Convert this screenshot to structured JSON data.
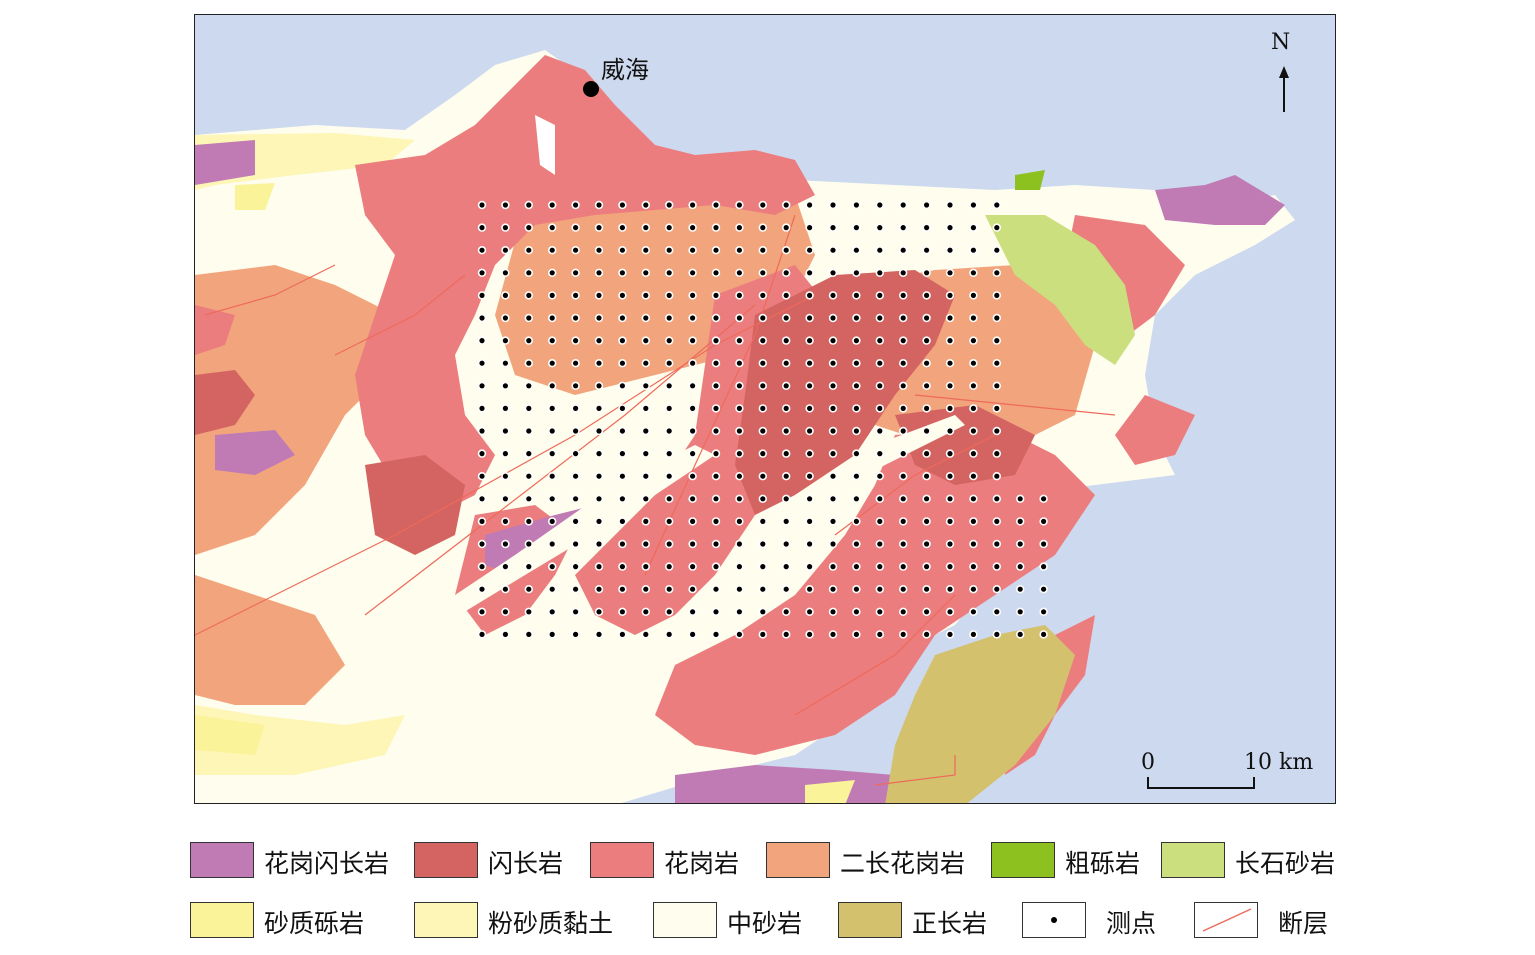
{
  "map": {
    "city": "威海",
    "north": "N",
    "scale_start": "0",
    "scale_end": "10 km"
  },
  "colors": {
    "sea": "#cdd9ee",
    "granodiorite": "#c07bb5",
    "diorite": "#d36462",
    "granite": "#ec7d7e",
    "monzogranite": "#f2a57c",
    "conglomerate": "#8dc11f",
    "arkose": "#cbdf7e",
    "sandy_conglomerate": "#fbf39a",
    "silty_clay": "#fdf6b6",
    "medium_sandstone": "#fefdee",
    "syenite": "#d3c16e",
    "fault": "#ee6a5a"
  },
  "legend": [
    {
      "label": "花岗闪长岩",
      "color": "#c07bb5"
    },
    {
      "label": "闪长岩",
      "color": "#d36462"
    },
    {
      "label": "花岗岩",
      "color": "#ec7d7e"
    },
    {
      "label": "二长花岗岩",
      "color": "#f2a57c"
    },
    {
      "label": "粗砾岩",
      "color": "#8dc11f"
    },
    {
      "label": "长石砂岩",
      "color": "#cbdf7e"
    },
    {
      "label": "砂质砾岩",
      "color": "#fbf39a"
    },
    {
      "label": "粉砂质黏土",
      "color": "#fdf6b6"
    },
    {
      "label": "中砂岩",
      "color": "#fefdee"
    },
    {
      "label": "正长岩",
      "color": "#d3c16e"
    },
    {
      "label": "测点",
      "icon": "dot-icon"
    },
    {
      "label": "断层",
      "icon": "fault-line-icon"
    }
  ]
}
